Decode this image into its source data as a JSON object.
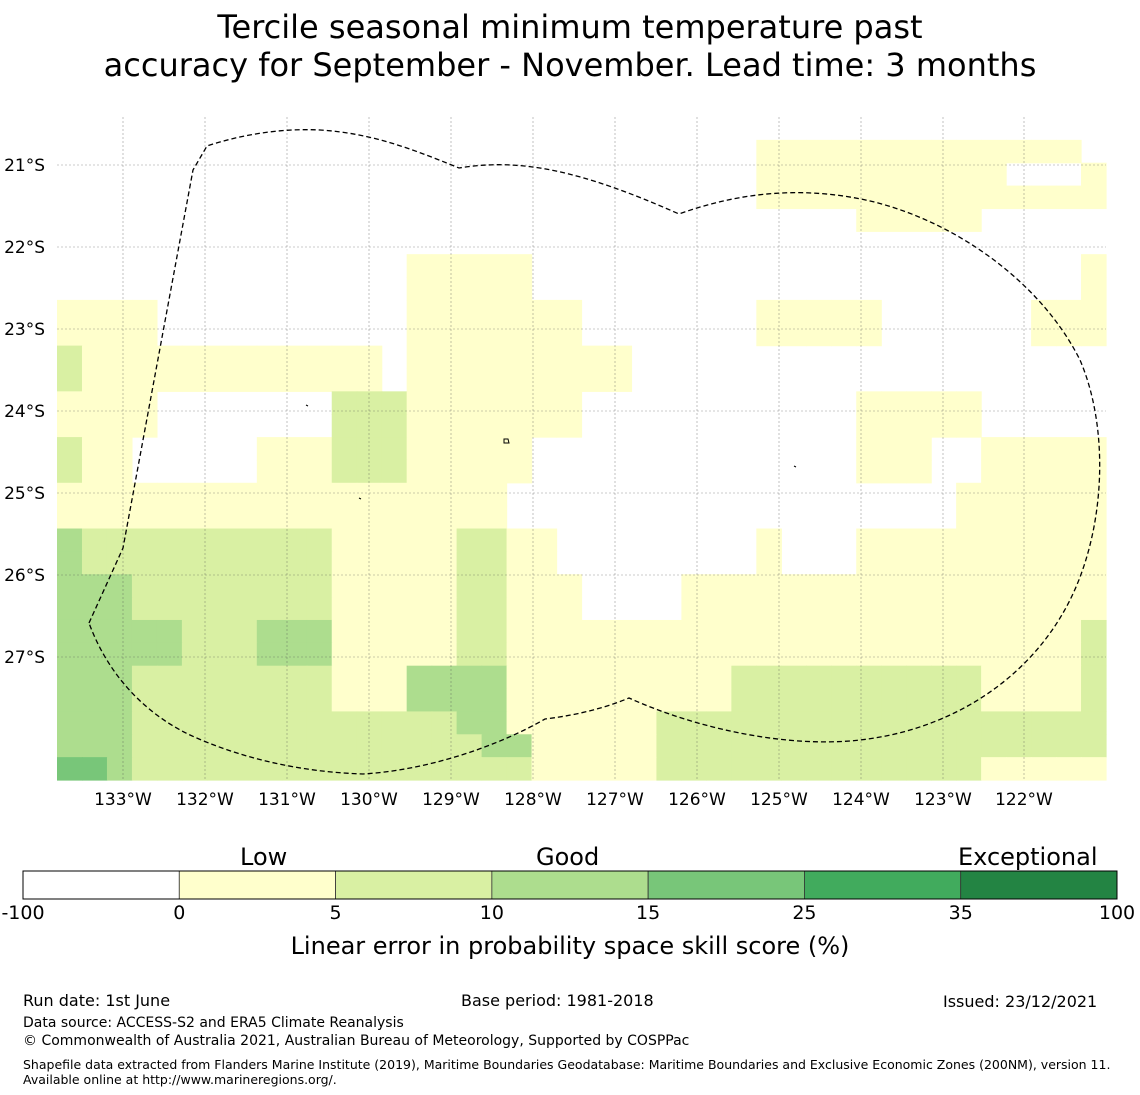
{
  "title_line1": "Tercile seasonal minimum temperature past",
  "title_line2": "accuracy for September - November. Lead time: 3 months",
  "map": {
    "lon_labels": [
      "133°W",
      "132°W",
      "131°W",
      "130°W",
      "129°W",
      "128°W",
      "127°W",
      "126°W",
      "125°W",
      "124°W",
      "123°W",
      "122°W"
    ],
    "lat_labels": [
      "21°S",
      "22°S",
      "23°S",
      "24°S",
      "25°S",
      "26°S",
      "27°S"
    ],
    "colors": {
      "0": "#ffffff",
      "1": "#ffffcc",
      "2": "#d9f0a3",
      "3": "#addd8e",
      "4": "#78c679",
      "5": "#41ab5d",
      "6": "#238443"
    },
    "grid_rows": [
      "000000000000000000000000000000000000000000",
      "000000000000000000000000000011111111111110",
      "000000000000000000000000000011111111110001",
      "000000000000000000000000000011111111111111",
      "000000000000000000000000000000001111100000",
      "000000000000000000000000000000000000000000",
      "000000000000001111100000000000000000000001",
      "000000000000001111100000000000000000000001",
      "111100000000001111111000000011111000000111",
      "111100000000001111111000000011111000000111",
      "211111111111101111111110000000000000000000",
      "211111111111101111111110000000000000000000",
      "111100000002221111111000000000001111100000",
      "111100000002221111111000000000001111100000",
      "211000001112221111100000000000001110011111",
      "211000001112221111100000000000001110011111",
      "111111111111111111000000000000000000111111",
      "111111111111111111000000000000000000111111",
      "322222222221111122110000000010001111111111",
      "322222222221111122110000000010001111111111",
      "333222222221111122111000011111111111111111",
      "333222222221111122111000011111111111111111",
      "333332223331111122111111111111111111111112",
      "333332223331111122111111111111111111111112",
      "333222222221113333111111111222222222211112",
      "333222222221113333111111111222222222211112",
      "333222222222222233111111222222222222222222",
      "333222222222222223311111222222222222222222",
      "443222222222222222211111222222222222211111"
    ],
    "legend": {
      "word_low": "Low",
      "word_good": "Good",
      "word_exceptional": "Exceptional",
      "ticks": [
        "-100",
        "0",
        "5",
        "10",
        "15",
        "25",
        "35",
        "100"
      ],
      "colors": [
        "#ffffff",
        "#ffffcc",
        "#d9f0a3",
        "#addd8e",
        "#78c679",
        "#41ab5d",
        "#238443"
      ],
      "label": "Linear error in probability space skill score (%)"
    }
  },
  "footer": {
    "run_date": "Run date: 1st June",
    "base_period": "Base period: 1981-2018",
    "issued": "Issued: 23/12/2021",
    "data_source": "Data source: ACCESS-S2 and ERA5 Climate Reanalysis",
    "copyright": "© Commonwealth of Australia 2021, Australian Bureau of Meteorology, Supported by COSPPac",
    "shapefile": "Shapefile data extracted from Flanders Marine Institute (2019), Maritime Boundaries Geodatabase: Maritime Boundaries and Exclusive Economic Zones (200NM), version 11. Available online at http://www.marineregions.org/."
  }
}
